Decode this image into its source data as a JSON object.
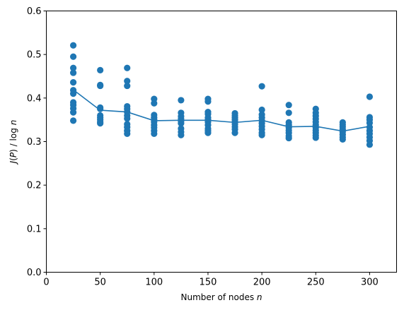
{
  "chart_data": {
    "type": "scatter",
    "xlabel": "Number of nodes n",
    "ylabel": "J(P) / log n",
    "xlim": [
      0,
      325
    ],
    "ylim": [
      0,
      0.6
    ],
    "x_ticks": [
      0,
      50,
      100,
      150,
      200,
      250,
      300
    ],
    "y_ticks": [
      0.0,
      0.1,
      0.2,
      0.3,
      0.4,
      0.5,
      0.6
    ],
    "x_tick_labels": [
      "0",
      "50",
      "100",
      "150",
      "200",
      "250",
      "300"
    ],
    "y_tick_labels": [
      "0.0",
      "0.1",
      "0.2",
      "0.3",
      "0.4",
      "0.5",
      "0.6"
    ],
    "grid": false,
    "color": "#1f77b4",
    "scatter": [
      {
        "x": 25,
        "y": [
          0.521,
          0.495,
          0.469,
          0.458,
          0.436,
          0.418,
          0.41,
          0.39,
          0.384,
          0.376,
          0.367,
          0.348
        ]
      },
      {
        "x": 50,
        "y": [
          0.464,
          0.43,
          0.428,
          0.378,
          0.375,
          0.36,
          0.355,
          0.35,
          0.345,
          0.342
        ]
      },
      {
        "x": 75,
        "y": [
          0.469,
          0.439,
          0.428,
          0.381,
          0.375,
          0.368,
          0.36,
          0.353,
          0.34,
          0.333,
          0.325,
          0.318
        ]
      },
      {
        "x": 100,
        "y": [
          0.398,
          0.388,
          0.361,
          0.355,
          0.35,
          0.345,
          0.338,
          0.332,
          0.325,
          0.318
        ]
      },
      {
        "x": 125,
        "y": [
          0.395,
          0.366,
          0.358,
          0.352,
          0.347,
          0.342,
          0.33,
          0.322,
          0.315
        ]
      },
      {
        "x": 150,
        "y": [
          0.398,
          0.392,
          0.368,
          0.363,
          0.355,
          0.35,
          0.345,
          0.338,
          0.33,
          0.325,
          0.32
        ]
      },
      {
        "x": 175,
        "y": [
          0.365,
          0.36,
          0.355,
          0.35,
          0.345,
          0.34,
          0.334,
          0.328,
          0.32
        ]
      },
      {
        "x": 200,
        "y": [
          0.427,
          0.373,
          0.362,
          0.355,
          0.348,
          0.342,
          0.335,
          0.328,
          0.32,
          0.315
        ]
      },
      {
        "x": 225,
        "y": [
          0.384,
          0.366,
          0.344,
          0.338,
          0.332,
          0.326,
          0.32,
          0.313,
          0.308
        ]
      },
      {
        "x": 250,
        "y": [
          0.375,
          0.366,
          0.359,
          0.352,
          0.345,
          0.338,
          0.332,
          0.326,
          0.32,
          0.314,
          0.309
        ]
      },
      {
        "x": 275,
        "y": [
          0.344,
          0.339,
          0.334,
          0.328,
          0.322,
          0.316,
          0.31,
          0.305
        ]
      },
      {
        "x": 300,
        "y": [
          0.403,
          0.356,
          0.35,
          0.343,
          0.333,
          0.325,
          0.318,
          0.31,
          0.302,
          0.293
        ]
      }
    ],
    "mean_line": {
      "x": [
        25,
        50,
        75,
        100,
        125,
        150,
        175,
        200,
        225,
        250,
        275,
        300
      ],
      "y": [
        0.419,
        0.372,
        0.368,
        0.348,
        0.349,
        0.349,
        0.344,
        0.349,
        0.334,
        0.335,
        0.324,
        0.335
      ]
    }
  }
}
